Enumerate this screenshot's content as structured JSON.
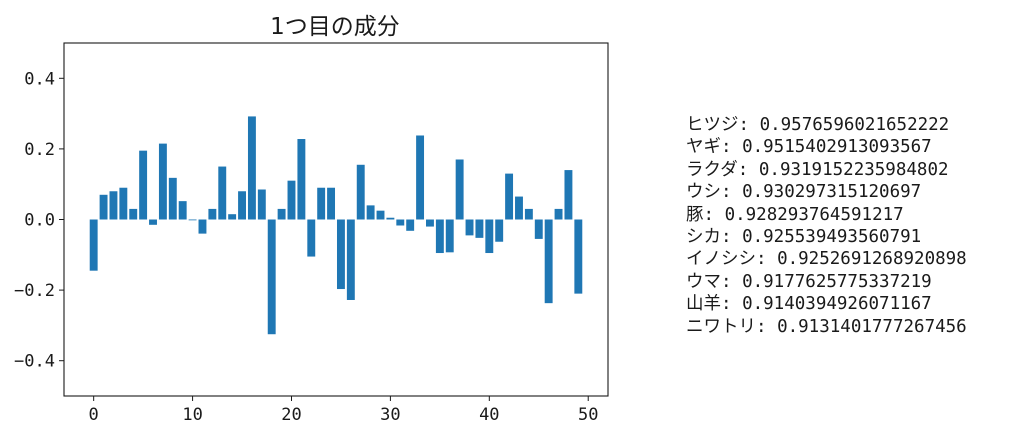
{
  "chart_data": {
    "type": "bar",
    "title": "1つ目の成分",
    "x": [
      0,
      1,
      2,
      3,
      4,
      5,
      6,
      7,
      8,
      9,
      10,
      11,
      12,
      13,
      14,
      15,
      16,
      17,
      18,
      19,
      20,
      21,
      22,
      23,
      24,
      25,
      26,
      27,
      28,
      29,
      30,
      31,
      32,
      33,
      34,
      35,
      36,
      37,
      38,
      39,
      40,
      41,
      42,
      43,
      44,
      45,
      46,
      47,
      48,
      49
    ],
    "values": [
      -0.145,
      0.07,
      0.08,
      0.09,
      0.03,
      0.195,
      -0.015,
      0.215,
      0.118,
      0.052,
      0.0,
      -0.04,
      0.03,
      0.15,
      0.015,
      0.08,
      0.292,
      0.085,
      -0.325,
      0.03,
      0.11,
      0.228,
      -0.105,
      0.09,
      0.09,
      -0.197,
      -0.228,
      0.155,
      0.04,
      0.025,
      0.005,
      -0.017,
      -0.032,
      0.238,
      -0.02,
      -0.095,
      -0.093,
      0.17,
      -0.045,
      -0.052,
      -0.095,
      -0.063,
      0.13,
      0.065,
      0.03,
      -0.055,
      -0.237,
      0.03,
      0.14,
      -0.21
    ],
    "color": "#1f77b4",
    "xlim": [
      -3,
      52
    ],
    "ylim": [
      -0.5,
      0.5
    ],
    "xticks": [
      0,
      10,
      20,
      30,
      40,
      50
    ],
    "yticks": [
      -0.4,
      -0.2,
      0.0,
      0.2,
      0.4
    ],
    "xtick_labels": [
      "0",
      "10",
      "20",
      "30",
      "40",
      "50"
    ],
    "ytick_labels": [
      "−0.4",
      "−0.2",
      "0.0",
      "0.2",
      "0.4"
    ],
    "grid": false
  },
  "similar_words": [
    {
      "label": "ヒツジ: 0.9576596021652222"
    },
    {
      "label": "ヤギ: 0.9515402913093567"
    },
    {
      "label": "ラクダ: 0.9319152235984802"
    },
    {
      "label": "ウシ: 0.930297315120697"
    },
    {
      "label": "豚: 0.928293764591217"
    },
    {
      "label": "シカ: 0.925539493560791"
    },
    {
      "label": "イノシシ: 0.9252691268920898"
    },
    {
      "label": "ウマ: 0.9177625775337219"
    },
    {
      "label": "山羊: 0.9140394926071167"
    },
    {
      "label": "ニワトリ: 0.9131401777267456"
    }
  ]
}
